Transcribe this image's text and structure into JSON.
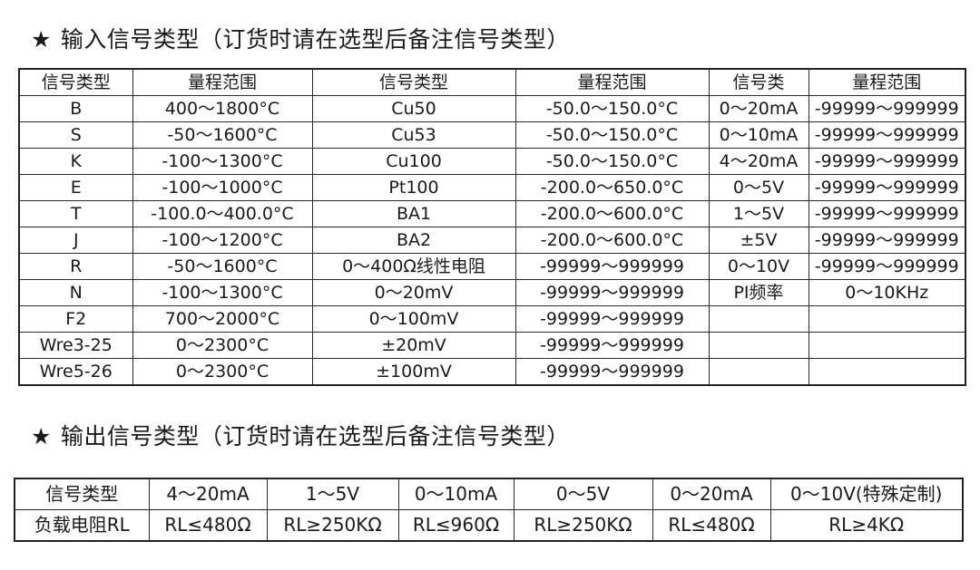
{
  "input_section": {
    "icon": "star-icon",
    "star": "★",
    "title": "输入信号类型（订货时请在选型后备注信号类型）",
    "headers": [
      "信号类型",
      "量程范围",
      "信号类型",
      "量程范围",
      "信号类",
      "量程范围"
    ],
    "rows": [
      [
        "B",
        "400～1800°C",
        "Cu50",
        "-50.0～150.0°C",
        "0～20mA",
        "-99999～999999"
      ],
      [
        "S",
        "-50～1600°C",
        "Cu53",
        "-50.0～150.0°C",
        "0～10mA",
        "-99999～999999"
      ],
      [
        "K",
        "-100～1300°C",
        "Cu100",
        "-50.0～150.0°C",
        "4～20mA",
        "-99999～999999"
      ],
      [
        "E",
        "-100～1000°C",
        "Pt100",
        "-200.0～650.0°C",
        "0～5V",
        "-99999～999999"
      ],
      [
        "T",
        "-100.0～400.0°C",
        "BA1",
        "-200.0～600.0°C",
        "1～5V",
        "-99999～999999"
      ],
      [
        "J",
        "-100～1200°C",
        "BA2",
        "-200.0～600.0°C",
        "±5V",
        "-99999～999999"
      ],
      [
        "R",
        "-50～1600°C",
        "0～400Ω线性电阻",
        "-99999～999999",
        "0～10V",
        "-99999～999999"
      ],
      [
        "N",
        "-100～1300°C",
        "0～20mV",
        "-99999～999999",
        "PI频率",
        "0～10KHz"
      ],
      [
        "F2",
        "700～2000°C",
        "0～100mV",
        "-99999～999999",
        "",
        ""
      ],
      [
        "Wre3-25",
        "0～2300°C",
        "±20mV",
        "-99999～999999",
        "",
        ""
      ],
      [
        "Wre5-26",
        "0～2300°C",
        "±100mV",
        "-99999～999999",
        "",
        ""
      ]
    ]
  },
  "output_section": {
    "icon": "star-icon",
    "star": "★",
    "title": "输出信号类型（订货时请在选型后备注信号类型）",
    "row_signal": [
      "信号类型",
      "4～20mA",
      "1～5V",
      "0～10mA",
      "0～5V",
      "0～20mA",
      "0～10V(特殊定制)"
    ],
    "row_load": [
      "负载电阻RL",
      "RL≤480Ω",
      "RL≥250KΩ",
      "RL≤960Ω",
      "RL≥250KΩ",
      "RL≤480Ω",
      "RL≥4KΩ"
    ]
  }
}
